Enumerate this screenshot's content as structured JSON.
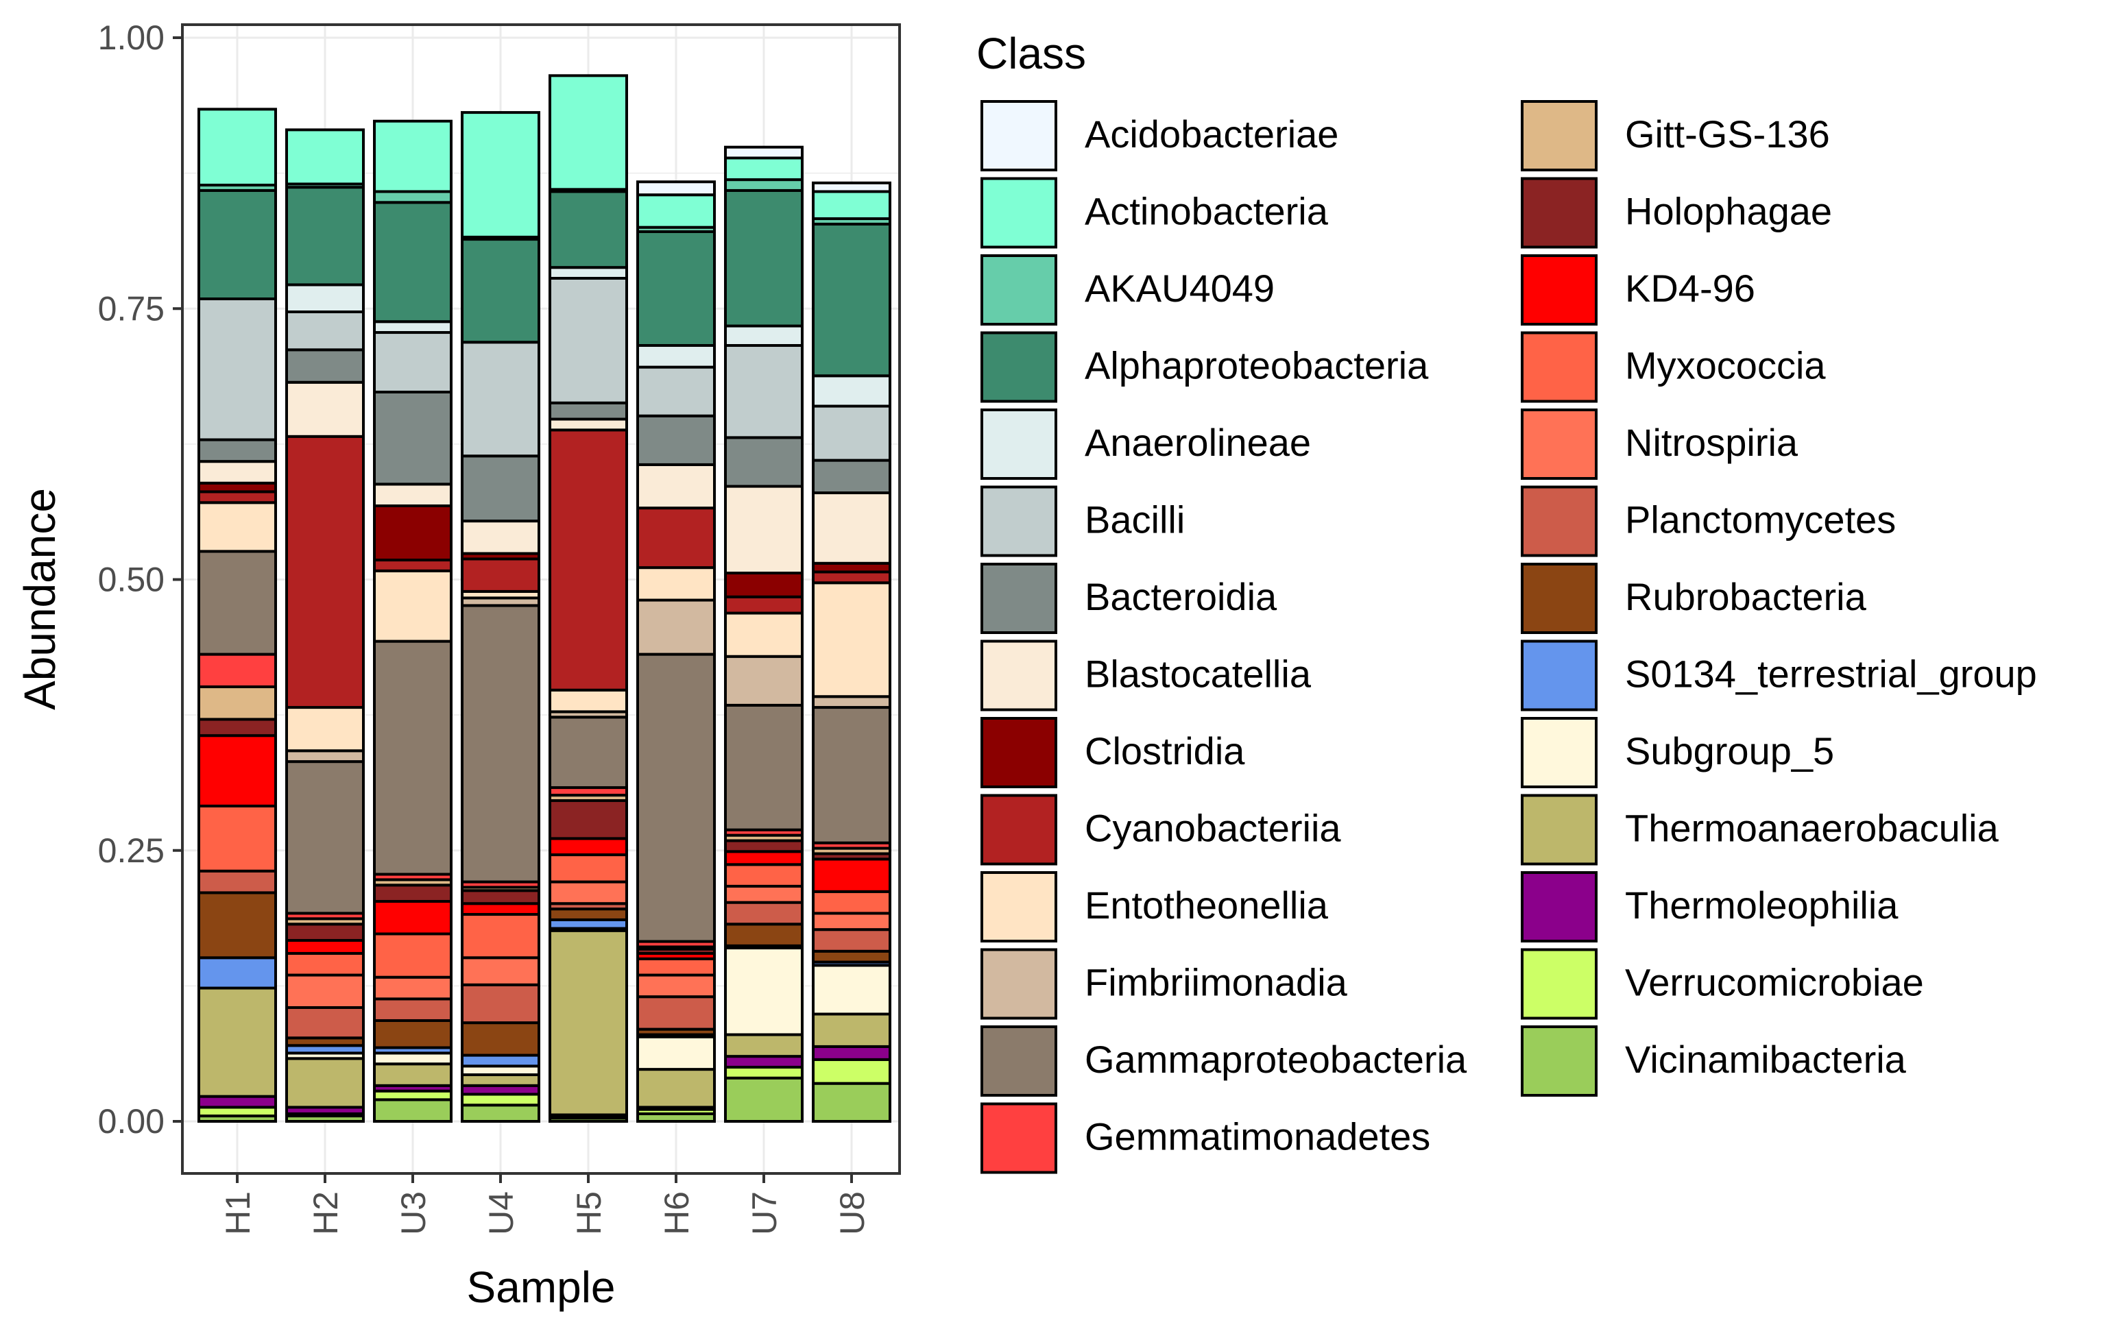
{
  "chart_data": {
    "type": "bar",
    "stacked": true,
    "xlabel": "Sample",
    "ylabel": "Abundance",
    "ylim": [
      0,
      1.0
    ],
    "yticks": [
      0.0,
      0.25,
      0.5,
      0.75,
      1.0
    ],
    "ytick_labels": [
      "0.00",
      "0.25",
      "0.50",
      "0.75",
      "1.00"
    ],
    "grid": true,
    "legend": {
      "title": "Class",
      "placement": "right",
      "columns": 2
    },
    "categories": [
      "H1",
      "H2",
      "U3",
      "U4",
      "H5",
      "H6",
      "U7",
      "U8"
    ],
    "series": [
      {
        "name": "Vicinamibacteria",
        "color": "#9ACD5A",
        "values": [
          0.005,
          0.005,
          0.02,
          0.015,
          0.003,
          0.007,
          0.04,
          0.035
        ]
      },
      {
        "name": "Verrucomicrobiae",
        "color": "#CCFF66",
        "values": [
          0.008,
          0.002,
          0.008,
          0.01,
          0.002,
          0.004,
          0.01,
          0.022
        ]
      },
      {
        "name": "Thermoleophilia",
        "color": "#8B008B",
        "values": [
          0.01,
          0.006,
          0.005,
          0.008,
          0.001,
          0.002,
          0.01,
          0.012
        ]
      },
      {
        "name": "Thermoanaerobaculia",
        "color": "#BDB76B",
        "values": [
          0.1,
          0.045,
          0.02,
          0.01,
          0.17,
          0.035,
          0.02,
          0.03
        ]
      },
      {
        "name": "Subgroup_5",
        "color": "#FFF8DC",
        "values": [
          0.0,
          0.005,
          0.01,
          0.008,
          0.002,
          0.03,
          0.08,
          0.045
        ]
      },
      {
        "name": "S0134_terrestrial_group",
        "color": "#6495ED",
        "values": [
          0.028,
          0.007,
          0.005,
          0.01,
          0.008,
          0.002,
          0.002,
          0.003
        ]
      },
      {
        "name": "Rubrobacteria",
        "color": "#8B4513",
        "values": [
          0.06,
          0.007,
          0.025,
          0.03,
          0.01,
          0.005,
          0.02,
          0.01
        ]
      },
      {
        "name": "Planctomycetes",
        "color": "#CD5C4A",
        "values": [
          0.02,
          0.028,
          0.02,
          0.035,
          0.005,
          0.03,
          0.02,
          0.02
        ]
      },
      {
        "name": "Nitrospiria",
        "color": "#FF7256",
        "values": [
          0.0,
          0.03,
          0.02,
          0.025,
          0.02,
          0.02,
          0.015,
          0.015
        ]
      },
      {
        "name": "Myxococcia",
        "color": "#FF6347",
        "values": [
          0.06,
          0.02,
          0.04,
          0.04,
          0.025,
          0.015,
          0.02,
          0.02
        ]
      },
      {
        "name": "KD4-96",
        "color": "#FF0000",
        "values": [
          0.065,
          0.012,
          0.03,
          0.01,
          0.015,
          0.005,
          0.012,
          0.03
        ]
      },
      {
        "name": "Holophagae",
        "color": "#8B2323",
        "values": [
          0.015,
          0.015,
          0.015,
          0.012,
          0.035,
          0.004,
          0.01,
          0.005
        ]
      },
      {
        "name": "Gitt-GS-136",
        "color": "#DEB887",
        "values": [
          0.03,
          0.005,
          0.005,
          0.003,
          0.005,
          0.002,
          0.005,
          0.005
        ]
      },
      {
        "name": "Gemmatimonadetes",
        "color": "#FF4040",
        "values": [
          0.03,
          0.005,
          0.005,
          0.005,
          0.007,
          0.005,
          0.005,
          0.005
        ]
      },
      {
        "name": "Gammaproteobacteria",
        "color": "#8B7B6B",
        "values": [
          0.095,
          0.14,
          0.215,
          0.255,
          0.065,
          0.265,
          0.115,
          0.125
        ]
      },
      {
        "name": "Fimbriimonadia",
        "color": "#D2B9A0",
        "values": [
          0.0,
          0.01,
          0.0,
          0.007,
          0.005,
          0.05,
          0.045,
          0.01
        ]
      },
      {
        "name": "Entotheonellia",
        "color": "#FFE4C4",
        "values": [
          0.045,
          0.04,
          0.065,
          0.006,
          0.02,
          0.03,
          0.04,
          0.105
        ]
      },
      {
        "name": "Cyanobacteriia",
        "color": "#B22222",
        "values": [
          0.01,
          0.25,
          0.01,
          0.03,
          0.24,
          0.055,
          0.015,
          0.01
        ]
      },
      {
        "name": "Clostridia",
        "color": "#8B0000",
        "values": [
          0.008,
          0.0,
          0.05,
          0.005,
          0.0,
          0.0,
          0.022,
          0.008
        ]
      },
      {
        "name": "Blastocatellia",
        "color": "#FAEBD7",
        "values": [
          0.02,
          0.05,
          0.02,
          0.03,
          0.01,
          0.04,
          0.08,
          0.065
        ]
      },
      {
        "name": "Bacteroidia",
        "color": "#7F8A87",
        "values": [
          0.02,
          0.03,
          0.085,
          0.06,
          0.015,
          0.045,
          0.045,
          0.03
        ]
      },
      {
        "name": "Bacilli",
        "color": "#C1CDCD",
        "values": [
          0.13,
          0.035,
          0.055,
          0.105,
          0.115,
          0.045,
          0.085,
          0.05
        ]
      },
      {
        "name": "Anaerolineae",
        "color": "#E0EEEE",
        "values": [
          0.0,
          0.025,
          0.01,
          0.0,
          0.01,
          0.02,
          0.018,
          0.028
        ]
      },
      {
        "name": "Alphaproteobacteria",
        "color": "#3D8B6E",
        "values": [
          0.1,
          0.09,
          0.11,
          0.095,
          0.07,
          0.105,
          0.125,
          0.14
        ]
      },
      {
        "name": "AKAU4049",
        "color": "#66CDAA",
        "values": [
          0.005,
          0.003,
          0.01,
          0.002,
          0.002,
          0.004,
          0.01,
          0.005
        ]
      },
      {
        "name": "Actinobacteria",
        "color": "#7FFFD4",
        "values": [
          0.07,
          0.05,
          0.065,
          0.115,
          0.105,
          0.03,
          0.02,
          0.025
        ]
      },
      {
        "name": "Acidobacteriae",
        "color": "#F0F8FF",
        "values": [
          0.0,
          0.0,
          0.0,
          0.0,
          0.0,
          0.012,
          0.01,
          0.008
        ]
      }
    ],
    "legend_order": [
      "Acidobacteriae",
      "Actinobacteria",
      "AKAU4049",
      "Alphaproteobacteria",
      "Anaerolineae",
      "Bacilli",
      "Bacteroidia",
      "Blastocatellia",
      "Clostridia",
      "Cyanobacteriia",
      "Entotheonellia",
      "Fimbriimonadia",
      "Gammaproteobacteria",
      "Gemmatimonadetes",
      "Gitt-GS-136",
      "Holophagae",
      "KD4-96",
      "Myxococcia",
      "Nitrospiria",
      "Planctomycetes",
      "Rubrobacteria",
      "S0134_terrestrial_group",
      "Subgroup_5",
      "Thermoanaerobaculia",
      "Thermoleophilia",
      "Verrucomicrobiae",
      "Vicinamibacteria"
    ]
  }
}
